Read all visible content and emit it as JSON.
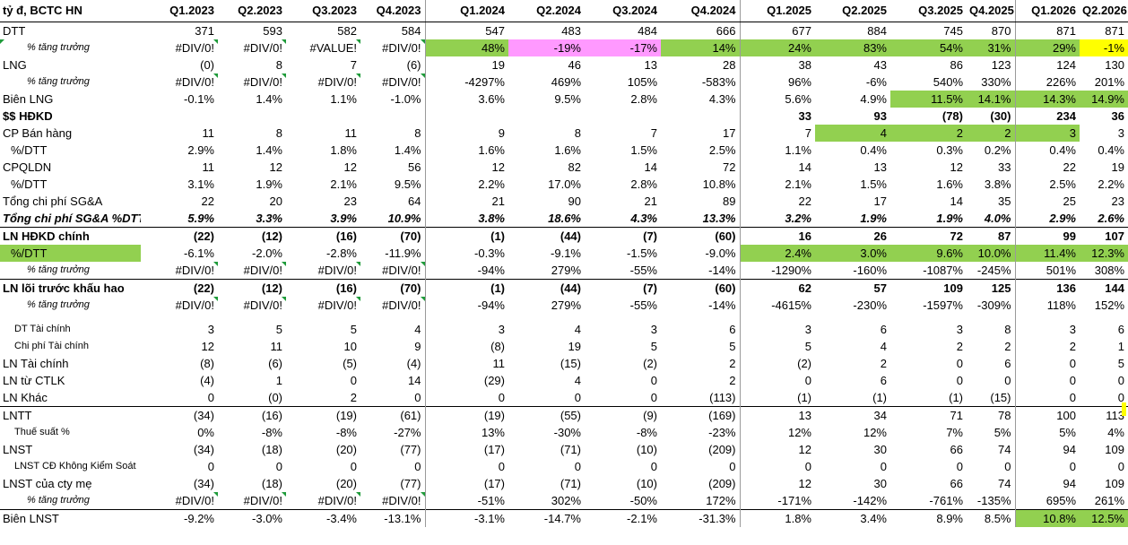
{
  "sheet": {
    "title": "tỷ đ, BCTC HN",
    "quarters": [
      "Q1.2023",
      "Q2.2023",
      "Q3.2023",
      "Q4.2023",
      "Q1.2024",
      "Q2.2024",
      "Q3.2024",
      "Q4.2024",
      "Q1.2025",
      "Q2.2025",
      "Q3.2025",
      "Q4.2025",
      "Q1.2026",
      "Q2.2026"
    ],
    "rows": [
      {
        "label": "DTT",
        "style": "",
        "values": [
          "371",
          "593",
          "582",
          "584",
          "547",
          "483",
          "484",
          "666",
          "677",
          "884",
          "745",
          "870",
          "871",
          "871"
        ]
      },
      {
        "label": "% tăng trưởng",
        "style": "it",
        "flag": true,
        "errCols": [
          0,
          1,
          2,
          3
        ],
        "values": [
          "#DIV/0!",
          "#DIV/0!",
          "#VALUE!",
          "#DIV/0!",
          "48%",
          "-19%",
          "-17%",
          "14%",
          "24%",
          "83%",
          "54%",
          "31%",
          "29%",
          "-1%"
        ],
        "fills": [
          "",
          "",
          "",
          "",
          "g",
          "p",
          "p",
          "g",
          "g",
          "g",
          "g",
          "g",
          "g",
          "y"
        ]
      },
      {
        "label": "LNG",
        "style": "",
        "values": [
          "(0)",
          "8",
          "7",
          "(6)",
          "19",
          "46",
          "13",
          "28",
          "38",
          "43",
          "86",
          "123",
          "124",
          "130"
        ]
      },
      {
        "label": "% tăng trưởng",
        "style": "it",
        "errCols": [
          0,
          1,
          2,
          3
        ],
        "values": [
          "#DIV/0!",
          "#DIV/0!",
          "#DIV/0!",
          "#DIV/0!",
          "-4297%",
          "469%",
          "105%",
          "-583%",
          "96%",
          "-6%",
          "540%",
          "330%",
          "226%",
          "201%"
        ]
      },
      {
        "label": "Biên LNG",
        "style": "",
        "values": [
          "-0.1%",
          "1.4%",
          "1.1%",
          "-1.0%",
          "3.6%",
          "9.5%",
          "2.8%",
          "4.3%",
          "5.6%",
          "4.9%",
          "11.5%",
          "14.1%",
          "14.3%",
          "14.9%"
        ],
        "fills": [
          "",
          "",
          "",
          "",
          "",
          "",
          "",
          "",
          "",
          "",
          "g",
          "g",
          "g",
          "g"
        ]
      },
      {
        "label": "$$ HĐKD",
        "style": "bold",
        "values": [
          "",
          "",
          "",
          "",
          "",
          "",
          "",
          "",
          "33",
          "93",
          "(78)",
          "(30)",
          "234",
          "36"
        ]
      },
      {
        "label": "CP Bán hàng",
        "style": "",
        "values": [
          "11",
          "8",
          "11",
          "8",
          "9",
          "8",
          "7",
          "17",
          "7",
          "4",
          "2",
          "2",
          "3",
          "3"
        ],
        "fills": [
          "",
          "",
          "",
          "",
          "",
          "",
          "",
          "",
          "",
          "g",
          "g",
          "g",
          "g",
          ""
        ]
      },
      {
        "label": "%/DTT",
        "style": "pct",
        "values": [
          "2.9%",
          "1.4%",
          "1.8%",
          "1.4%",
          "1.6%",
          "1.6%",
          "1.5%",
          "2.5%",
          "1.1%",
          "0.4%",
          "0.3%",
          "0.2%",
          "0.4%",
          "0.4%"
        ]
      },
      {
        "label": "CPQLDN",
        "style": "",
        "values": [
          "11",
          "12",
          "12",
          "56",
          "12",
          "82",
          "14",
          "72",
          "14",
          "13",
          "12",
          "33",
          "22",
          "19"
        ]
      },
      {
        "label": "%/DTT",
        "style": "pct",
        "values": [
          "3.1%",
          "1.9%",
          "2.1%",
          "9.5%",
          "2.2%",
          "17.0%",
          "2.8%",
          "10.8%",
          "2.1%",
          "1.5%",
          "1.6%",
          "3.8%",
          "2.5%",
          "2.2%"
        ]
      },
      {
        "label": "Tổng chi phí SG&A",
        "style": "",
        "values": [
          "22",
          "20",
          "23",
          "64",
          "21",
          "90",
          "21",
          "89",
          "22",
          "17",
          "14",
          "35",
          "25",
          "23"
        ]
      },
      {
        "label": "Tổng chi phí SG&A %DTT",
        "style": "bi",
        "values": [
          "5.9%",
          "3.3%",
          "3.9%",
          "10.9%",
          "3.8%",
          "18.6%",
          "4.3%",
          "13.3%",
          "3.2%",
          "1.9%",
          "1.9%",
          "4.0%",
          "2.9%",
          "2.6%"
        ]
      },
      {
        "label": "LN HĐKD chính",
        "style": "bold top",
        "values": [
          "(22)",
          "(12)",
          "(16)",
          "(70)",
          "(1)",
          "(44)",
          "(7)",
          "(60)",
          "16",
          "26",
          "72",
          "87",
          "99",
          "107"
        ]
      },
      {
        "label": "%/DTT",
        "style": "pct",
        "labelFill": "g",
        "values": [
          "-6.1%",
          "-2.0%",
          "-2.8%",
          "-11.9%",
          "-0.3%",
          "-9.1%",
          "-1.5%",
          "-9.0%",
          "2.4%",
          "3.0%",
          "9.6%",
          "10.0%",
          "11.4%",
          "12.3%"
        ],
        "fills": [
          "",
          "",
          "",
          "",
          "",
          "",
          "",
          "",
          "g",
          "g",
          "g",
          "g",
          "g",
          "g"
        ]
      },
      {
        "label": "% tăng trưởng",
        "style": "it",
        "errCols": [
          0,
          1,
          2,
          3
        ],
        "values": [
          "#DIV/0!",
          "#DIV/0!",
          "#DIV/0!",
          "#DIV/0!",
          "-94%",
          "279%",
          "-55%",
          "-14%",
          "-1290%",
          "-160%",
          "-1087%",
          "-245%",
          "501%",
          "308%"
        ]
      },
      {
        "label": "LN lõi trước khấu hao",
        "style": "bold top",
        "values": [
          "(22)",
          "(12)",
          "(16)",
          "(70)",
          "(1)",
          "(44)",
          "(7)",
          "(60)",
          "62",
          "57",
          "109",
          "125",
          "136",
          "144"
        ]
      },
      {
        "label": "% tăng trưởng",
        "style": "it",
        "errCols": [
          0,
          1,
          2,
          3
        ],
        "values": [
          "#DIV/0!",
          "#DIV/0!",
          "#DIV/0!",
          "#DIV/0!",
          "-94%",
          "279%",
          "-55%",
          "-14%",
          "-4615%",
          "-230%",
          "-1597%",
          "-309%",
          "118%",
          "152%"
        ]
      },
      {
        "label": "",
        "style": "gap",
        "values": [
          "",
          "",
          "",
          "",
          "",
          "",
          "",
          "",
          "",
          "",
          "",
          "",
          "",
          ""
        ]
      },
      {
        "label": "DT Tài chính",
        "style": "sm",
        "values": [
          "3",
          "5",
          "5",
          "4",
          "3",
          "4",
          "3",
          "6",
          "3",
          "6",
          "3",
          "8",
          "3",
          "6"
        ]
      },
      {
        "label": "Chi phí Tài chính",
        "style": "sm",
        "values": [
          "12",
          "11",
          "10",
          "9",
          "(8)",
          "19",
          "5",
          "5",
          "5",
          "4",
          "2",
          "2",
          "2",
          "1"
        ]
      },
      {
        "label": "LN Tài chính",
        "style": "",
        "values": [
          "(8)",
          "(6)",
          "(5)",
          "(4)",
          "11",
          "(15)",
          "(2)",
          "2",
          "(2)",
          "2",
          "0",
          "6",
          "0",
          "5"
        ]
      },
      {
        "label": "LN từ CTLK",
        "style": "",
        "values": [
          "(4)",
          "1",
          "0",
          "14",
          "(29)",
          "4",
          "0",
          "2",
          "0",
          "6",
          "0",
          "0",
          "0",
          "0"
        ]
      },
      {
        "label": "LN Khác",
        "style": "",
        "values": [
          "0",
          "(0)",
          "2",
          "0",
          "0",
          "0",
          "0",
          "(113)",
          "(1)",
          "(1)",
          "(1)",
          "(15)",
          "0",
          "0"
        ]
      },
      {
        "label": "LNTT",
        "style": "top",
        "values": [
          "(34)",
          "(16)",
          "(19)",
          "(61)",
          "(19)",
          "(55)",
          "(9)",
          "(169)",
          "13",
          "34",
          "71",
          "78",
          "100",
          "113"
        ]
      },
      {
        "label": "Thuế suất %",
        "style": "sm2",
        "values": [
          "0%",
          "-8%",
          "-8%",
          "-27%",
          "13%",
          "-30%",
          "-8%",
          "-23%",
          "12%",
          "12%",
          "7%",
          "5%",
          "5%",
          "4%"
        ]
      },
      {
        "label": "LNST",
        "style": "",
        "values": [
          "(34)",
          "(18)",
          "(20)",
          "(77)",
          "(17)",
          "(71)",
          "(10)",
          "(209)",
          "12",
          "30",
          "66",
          "74",
          "94",
          "109"
        ]
      },
      {
        "label": "LNST CĐ Không Kiểm Soát",
        "style": "sm2",
        "values": [
          "0",
          "0",
          "0",
          "0",
          "0",
          "0",
          "0",
          "0",
          "0",
          "0",
          "0",
          "0",
          "0",
          "0"
        ]
      },
      {
        "label": "LNST của cty mẹ",
        "style": "",
        "values": [
          "(34)",
          "(18)",
          "(20)",
          "(77)",
          "(17)",
          "(71)",
          "(10)",
          "(209)",
          "12",
          "30",
          "66",
          "74",
          "94",
          "109"
        ]
      },
      {
        "label": "% tăng trưởng",
        "style": "it",
        "errCols": [
          0,
          1,
          2,
          3
        ],
        "values": [
          "#DIV/0!",
          "#DIV/0!",
          "#DIV/0!",
          "#DIV/0!",
          "-51%",
          "302%",
          "-50%",
          "172%",
          "-171%",
          "-142%",
          "-761%",
          "-135%",
          "695%",
          "261%"
        ]
      },
      {
        "label": "Biên LNST",
        "style": "top",
        "values": [
          "-9.2%",
          "-3.0%",
          "-3.4%",
          "-13.1%",
          "-3.1%",
          "-14.7%",
          "-2.1%",
          "-31.3%",
          "1.8%",
          "3.4%",
          "8.9%",
          "8.5%",
          "10.8%",
          "12.5%"
        ],
        "fills": [
          "",
          "",
          "",
          "",
          "",
          "",
          "",
          "",
          "",
          "",
          "",
          "",
          "g",
          "g"
        ]
      }
    ]
  }
}
